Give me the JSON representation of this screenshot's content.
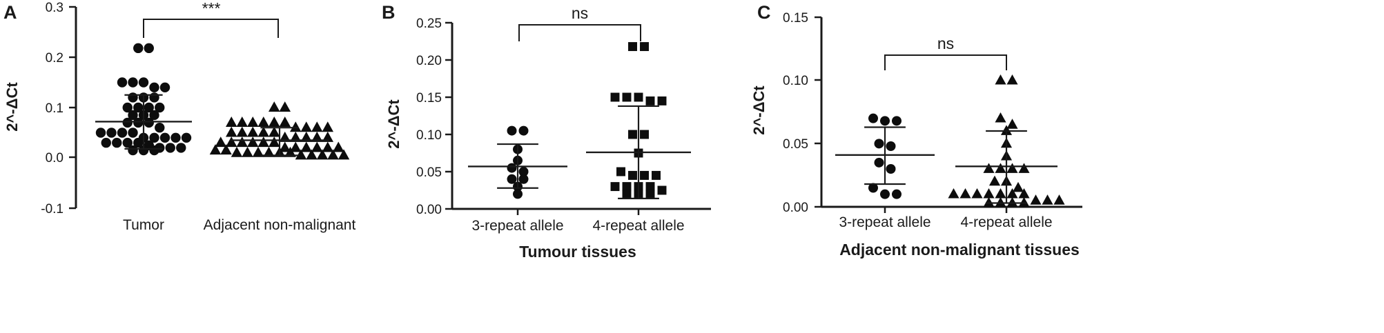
{
  "chart_data": [
    {
      "type": "scatter",
      "panel": "A",
      "ylabel": "2^-ΔCt",
      "xlabel": "",
      "ylim": [
        -0.1,
        0.3
      ],
      "yticks": [
        "-0.1",
        "0.0",
        "0.1",
        "0.2",
        "0.3"
      ],
      "yticks_values": [
        -0.1,
        0.0,
        0.1,
        0.2,
        0.3
      ],
      "categories": [
        "Tumor",
        "Adjacent non-malignant"
      ],
      "significance": "***",
      "series": [
        {
          "category": "Tumor",
          "marker": "circle",
          "mean": 0.072,
          "sd_low": 0.018,
          "sd_high": 0.125,
          "values": [
            0.218,
            0.218,
            0.15,
            0.15,
            0.15,
            0.14,
            0.14,
            0.12,
            0.12,
            0.12,
            0.1,
            0.1,
            0.1,
            0.1,
            0.085,
            0.085,
            0.085,
            0.07,
            0.07,
            0.07,
            0.06,
            0.05,
            0.05,
            0.05,
            0.05,
            0.04,
            0.04,
            0.04,
            0.04,
            0.04,
            0.03,
            0.03,
            0.03,
            0.03,
            0.025,
            0.02,
            0.02,
            0.02,
            0.015,
            0.015,
            0.015
          ]
        },
        {
          "category": "Adjacent non-malignant",
          "marker": "triangle",
          "mean": 0.035,
          "sd_low": 0.005,
          "sd_high": 0.06,
          "values": [
            0.1,
            0.1,
            0.07,
            0.07,
            0.07,
            0.07,
            0.07,
            0.07,
            0.06,
            0.06,
            0.06,
            0.06,
            0.05,
            0.05,
            0.05,
            0.05,
            0.05,
            0.04,
            0.04,
            0.04,
            0.04,
            0.04,
            0.03,
            0.03,
            0.03,
            0.03,
            0.03,
            0.03,
            0.02,
            0.02,
            0.02,
            0.02,
            0.02,
            0.02,
            0.015,
            0.015,
            0.01,
            0.01,
            0.01,
            0.01,
            0.01,
            0.01,
            0.005,
            0.005,
            0.005,
            0.005,
            0.005
          ]
        }
      ]
    },
    {
      "type": "scatter",
      "panel": "B",
      "ylabel": "2^-ΔCt",
      "xlabel": "Tumour tissues",
      "ylim": [
        0.0,
        0.25
      ],
      "yticks": [
        "0.00",
        "0.05",
        "0.10",
        "0.15",
        "0.20",
        "0.25"
      ],
      "yticks_values": [
        0.0,
        0.05,
        0.1,
        0.15,
        0.2,
        0.25
      ],
      "categories": [
        "3-repeat allele",
        "4-repeat allele"
      ],
      "significance": "ns",
      "series": [
        {
          "category": "3-repeat allele",
          "marker": "circle",
          "mean": 0.057,
          "sd_low": 0.028,
          "sd_high": 0.087,
          "values": [
            0.105,
            0.105,
            0.08,
            0.065,
            0.055,
            0.05,
            0.04,
            0.04,
            0.03,
            0.02
          ]
        },
        {
          "category": "4-repeat allele",
          "marker": "square",
          "mean": 0.076,
          "sd_low": 0.014,
          "sd_high": 0.138,
          "values": [
            0.218,
            0.218,
            0.15,
            0.15,
            0.15,
            0.145,
            0.145,
            0.1,
            0.1,
            0.075,
            0.05,
            0.045,
            0.045,
            0.045,
            0.03,
            0.03,
            0.03,
            0.03,
            0.025,
            0.02,
            0.02,
            0.02
          ]
        }
      ]
    },
    {
      "type": "scatter",
      "panel": "C",
      "ylabel": "2^-ΔCt",
      "xlabel": "Adjacent non-malignant tissues",
      "ylim": [
        0.0,
        0.15
      ],
      "yticks": [
        "0.00",
        "0.05",
        "0.10",
        "0.15"
      ],
      "yticks_values": [
        0.0,
        0.05,
        0.1,
        0.15
      ],
      "categories": [
        "3-repeat allele",
        "4-repeat allele"
      ],
      "significance": "ns",
      "series": [
        {
          "category": "3-repeat allele",
          "marker": "circle",
          "mean": 0.041,
          "sd_low": 0.018,
          "sd_high": 0.063,
          "values": [
            0.07,
            0.068,
            0.068,
            0.05,
            0.048,
            0.035,
            0.03,
            0.015,
            0.01,
            0.01
          ]
        },
        {
          "category": "4-repeat allele",
          "marker": "triangle",
          "mean": 0.032,
          "sd_low": 0.003,
          "sd_high": 0.06,
          "values": [
            0.1,
            0.1,
            0.07,
            0.065,
            0.06,
            0.05,
            0.04,
            0.03,
            0.03,
            0.03,
            0.03,
            0.02,
            0.02,
            0.015,
            0.01,
            0.01,
            0.01,
            0.01,
            0.01,
            0.01,
            0.01,
            0.005,
            0.005,
            0.005,
            0.003,
            0.003,
            0.003,
            0.003
          ]
        }
      ]
    }
  ]
}
